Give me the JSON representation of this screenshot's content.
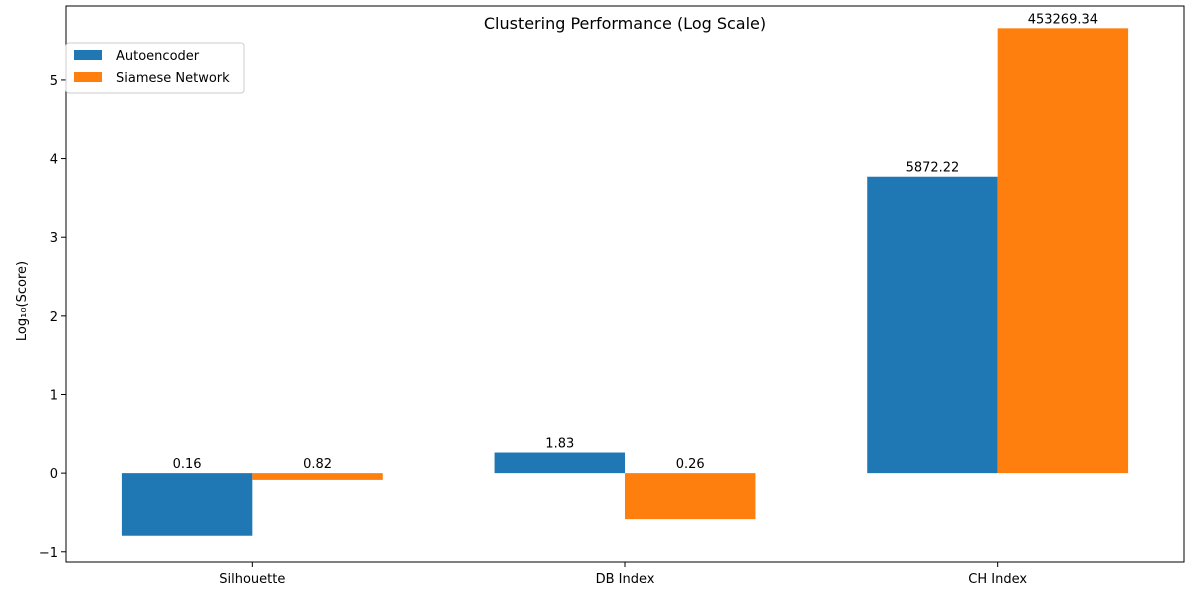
{
  "chart_data": {
    "type": "bar",
    "title": "Clustering Performance (Log Scale)",
    "xlabel": "",
    "ylabel": "Log₁₀(Score)",
    "categories": [
      "Silhouette",
      "DB Index",
      "CH Index"
    ],
    "series": [
      {
        "name": "Autoencoder",
        "color": "#1f77b4",
        "values": [
          -0.796,
          0.262,
          3.769
        ],
        "labels": [
          "0.16",
          "1.83",
          "5872.22"
        ]
      },
      {
        "name": "Siamese Network",
        "color": "#ff7f0e",
        "values": [
          -0.086,
          -0.585,
          5.656
        ],
        "labels": [
          "0.82",
          "0.26",
          "453269.34"
        ]
      }
    ],
    "y_ticks": [
      "−1",
      "0",
      "1",
      "2",
      "3",
      "4",
      "5"
    ],
    "ylim": [
      -1.13,
      5.94
    ],
    "grid": false,
    "legend_position": "top-left"
  }
}
